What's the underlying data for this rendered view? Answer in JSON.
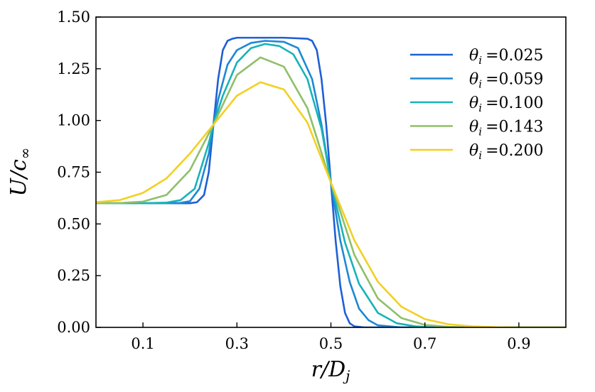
{
  "chart_data": {
    "type": "line",
    "xlabel": "r/D_j",
    "ylabel": "U/c_∞",
    "xlim": [
      0.0,
      1.0
    ],
    "ylim": [
      0.0,
      1.5
    ],
    "xticks": [
      "0.1",
      "0.3",
      "0.5",
      "0.7",
      "0.9"
    ],
    "yticks": [
      "0.00",
      "0.25",
      "0.50",
      "0.75",
      "1.00",
      "1.25",
      "1.50"
    ],
    "grid": false,
    "legend_position": "top-right",
    "series": [
      {
        "name": "θi =0.025",
        "label_symbol": "θ",
        "label_sub": "i",
        "label_value": "=0.025",
        "color": "#1f5fd6",
        "x": [
          0.0,
          0.2,
          0.215,
          0.23,
          0.24,
          0.25,
          0.26,
          0.27,
          0.28,
          0.29,
          0.3,
          0.35,
          0.4,
          0.45,
          0.46,
          0.47,
          0.48,
          0.49,
          0.5,
          0.51,
          0.52,
          0.53,
          0.54,
          0.55,
          0.57,
          1.0
        ],
        "y": [
          0.6,
          0.6,
          0.605,
          0.64,
          0.75,
          0.98,
          1.2,
          1.34,
          1.385,
          1.395,
          1.4,
          1.4,
          1.4,
          1.395,
          1.385,
          1.34,
          1.2,
          0.98,
          0.7,
          0.42,
          0.2,
          0.07,
          0.02,
          0.005,
          0.0,
          0.0
        ]
      },
      {
        "name": "θi =0.059",
        "label_symbol": "θ",
        "label_sub": "i",
        "label_value": "=0.059",
        "color": "#1e88d4",
        "x": [
          0.0,
          0.15,
          0.18,
          0.2,
          0.22,
          0.24,
          0.25,
          0.26,
          0.28,
          0.3,
          0.33,
          0.36,
          0.4,
          0.43,
          0.46,
          0.48,
          0.5,
          0.52,
          0.54,
          0.56,
          0.58,
          0.6,
          0.65,
          1.0
        ],
        "y": [
          0.6,
          0.6,
          0.602,
          0.61,
          0.67,
          0.84,
          0.98,
          1.1,
          1.27,
          1.34,
          1.375,
          1.385,
          1.38,
          1.35,
          1.2,
          0.98,
          0.7,
          0.42,
          0.22,
          0.09,
          0.035,
          0.01,
          0.0,
          0.0
        ]
      },
      {
        "name": "θi =0.100",
        "label_symbol": "θ",
        "label_sub": "i",
        "label_value": "=0.100",
        "color": "#18b3b8",
        "x": [
          0.0,
          0.1,
          0.15,
          0.18,
          0.21,
          0.24,
          0.25,
          0.27,
          0.3,
          0.33,
          0.36,
          0.39,
          0.42,
          0.45,
          0.48,
          0.5,
          0.53,
          0.56,
          0.6,
          0.64,
          0.68,
          0.72,
          1.0
        ],
        "y": [
          0.6,
          0.6,
          0.603,
          0.615,
          0.67,
          0.89,
          0.98,
          1.12,
          1.28,
          1.35,
          1.37,
          1.36,
          1.32,
          1.2,
          0.96,
          0.7,
          0.41,
          0.21,
          0.07,
          0.02,
          0.005,
          0.0,
          0.0
        ]
      },
      {
        "name": "θi =0.143",
        "label_symbol": "θ",
        "label_sub": "i",
        "label_value": "=0.143",
        "color": "#8fbf6a",
        "x": [
          0.0,
          0.05,
          0.1,
          0.15,
          0.2,
          0.25,
          0.3,
          0.35,
          0.4,
          0.45,
          0.5,
          0.55,
          0.6,
          0.65,
          0.7,
          0.75,
          0.8,
          1.0
        ],
        "y": [
          0.6,
          0.601,
          0.608,
          0.64,
          0.76,
          0.98,
          1.22,
          1.305,
          1.26,
          1.06,
          0.7,
          0.35,
          0.14,
          0.045,
          0.012,
          0.003,
          0.0,
          0.0
        ]
      },
      {
        "name": "θi =0.200",
        "label_symbol": "θ",
        "label_sub": "i",
        "label_value": "=0.200",
        "color": "#f2d022",
        "x": [
          0.0,
          0.05,
          0.1,
          0.15,
          0.2,
          0.25,
          0.3,
          0.35,
          0.4,
          0.45,
          0.5,
          0.55,
          0.6,
          0.65,
          0.7,
          0.75,
          0.8,
          0.85,
          0.9,
          1.0
        ],
        "y": [
          0.605,
          0.615,
          0.65,
          0.72,
          0.84,
          0.98,
          1.12,
          1.185,
          1.15,
          0.99,
          0.7,
          0.42,
          0.22,
          0.1,
          0.04,
          0.015,
          0.005,
          0.001,
          0.0,
          0.0
        ]
      }
    ]
  }
}
